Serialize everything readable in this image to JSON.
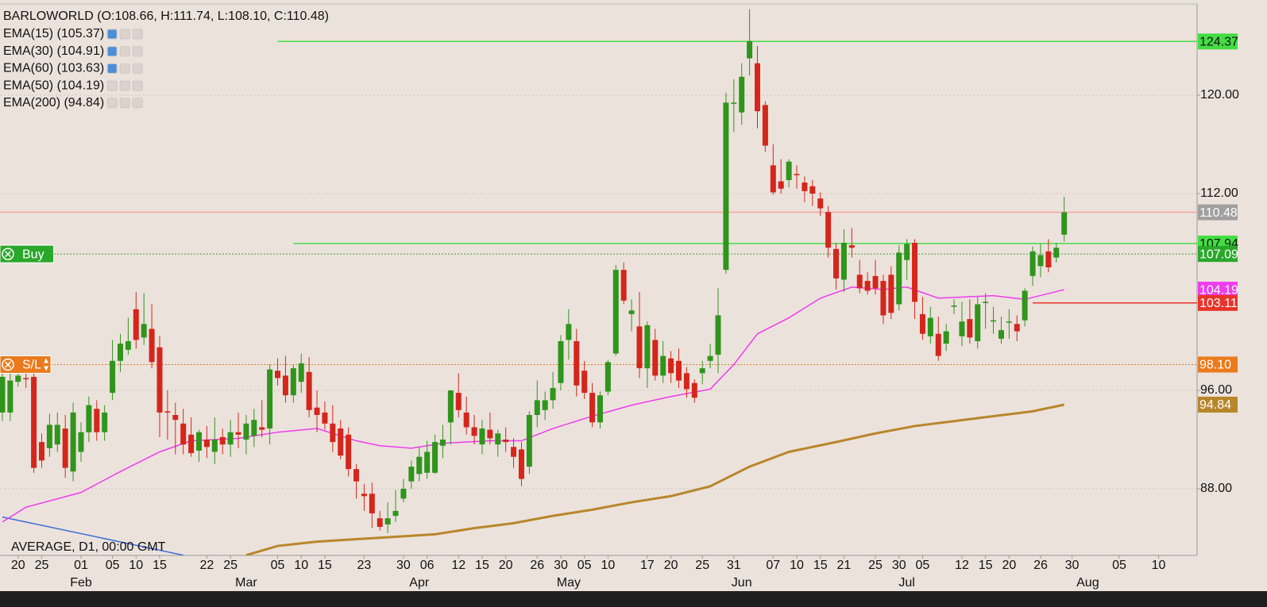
{
  "chart_data": {
    "type": "candlestick",
    "title": "BARLOWORLD (O:108.66, H:111.74, L:108.10, C:110.48)",
    "indicators": [
      "EMA(15) (105.37)",
      "EMA(30) (104.91)",
      "EMA(60) (103.63)",
      "EMA(50) (104.19)",
      "EMA(200) (94.84)"
    ],
    "footer": "AVERAGE, D1, 00:00 GMT",
    "up_color": "#2f951c",
    "down_color": "#d4261c",
    "ylim": [
      82.58,
      127.42
    ],
    "yticks": [
      {
        "value": 88,
        "label": "88.00"
      },
      {
        "value": 96,
        "label": "96.00"
      },
      {
        "value": 112,
        "label": "112.00"
      },
      {
        "value": 120,
        "label": "120.00"
      }
    ],
    "grid": true,
    "xlim": [
      -0.3,
      151.9
    ],
    "xticks": [
      {
        "value": 2,
        "label": "20"
      },
      {
        "value": 5,
        "label": "25"
      },
      {
        "value": 10,
        "label": "01"
      },
      {
        "value": 14,
        "label": "05"
      },
      {
        "value": 17,
        "label": "10"
      },
      {
        "value": 20,
        "label": "15"
      },
      {
        "value": 26,
        "label": "22"
      },
      {
        "value": 29,
        "label": "25"
      },
      {
        "value": 35,
        "label": "05"
      },
      {
        "value": 38,
        "label": "10"
      },
      {
        "value": 41,
        "label": "15"
      },
      {
        "value": 46,
        "label": "23"
      },
      {
        "value": 51,
        "label": "30"
      },
      {
        "value": 54,
        "label": "06"
      },
      {
        "value": 58,
        "label": "12"
      },
      {
        "value": 61,
        "label": "15"
      },
      {
        "value": 64,
        "label": "20"
      },
      {
        "value": 68,
        "label": "26"
      },
      {
        "value": 71,
        "label": "30"
      },
      {
        "value": 74,
        "label": "05"
      },
      {
        "value": 77,
        "label": "10"
      },
      {
        "value": 82,
        "label": "17"
      },
      {
        "value": 85,
        "label": "20"
      },
      {
        "value": 89,
        "label": "25"
      },
      {
        "value": 93,
        "label": "31"
      },
      {
        "value": 98,
        "label": "07"
      },
      {
        "value": 101,
        "label": "10"
      },
      {
        "value": 104,
        "label": "15"
      },
      {
        "value": 107,
        "label": "21"
      },
      {
        "value": 111,
        "label": "25"
      },
      {
        "value": 114,
        "label": "30"
      },
      {
        "value": 117,
        "label": "05"
      },
      {
        "value": 122,
        "label": "12"
      },
      {
        "value": 125,
        "label": "15"
      },
      {
        "value": 128,
        "label": "20"
      },
      {
        "value": 132,
        "label": "26"
      },
      {
        "value": 136,
        "label": "30"
      },
      {
        "value": 142,
        "label": "05"
      },
      {
        "value": 147,
        "label": "10"
      }
    ],
    "month_ticks": [
      {
        "value": 10,
        "label": "Feb"
      },
      {
        "value": 31,
        "label": "Mar"
      },
      {
        "value": 53,
        "label": "Apr"
      },
      {
        "value": 72,
        "label": "May"
      },
      {
        "value": 94,
        "label": "Jun"
      },
      {
        "value": 115,
        "label": "Jul"
      },
      {
        "value": 138,
        "label": "Aug"
      }
    ],
    "candles": [
      [
        94.2,
        97.7,
        93.5,
        97.1
      ],
      [
        94.2,
        97.5,
        93.5,
        96.8
      ],
      [
        96.7,
        97.6,
        96.3,
        97.2
      ],
      [
        97.0,
        97.9,
        96.2,
        96.9
      ],
      [
        97.1,
        97.8,
        89.3,
        89.7
      ],
      [
        91.8,
        92.5,
        89.7,
        90.3
      ],
      [
        91.3,
        94.1,
        90.6,
        93.2
      ],
      [
        91.6,
        94.2,
        91.0,
        93.2
      ],
      [
        92.9,
        94.0,
        88.9,
        89.7
      ],
      [
        89.4,
        95.0,
        88.6,
        94.2
      ],
      [
        91.0,
        93.4,
        90.2,
        92.6
      ],
      [
        92.6,
        95.5,
        91.8,
        94.8
      ],
      [
        94.5,
        95.2,
        91.9,
        92.6
      ],
      [
        92.6,
        94.8,
        91.9,
        94.2
      ],
      [
        95.8,
        100.1,
        95.2,
        98.4
      ],
      [
        98.4,
        100.6,
        97.5,
        99.8
      ],
      [
        99.3,
        101.9,
        98.9,
        100.0
      ],
      [
        102.6,
        104.0,
        99.4,
        100.1
      ],
      [
        100.3,
        103.9,
        99.7,
        101.4
      ],
      [
        101.0,
        103.0,
        97.8,
        98.3
      ],
      [
        99.5,
        100.4,
        92.2,
        94.2
      ],
      [
        94.3,
        96.0,
        92.0,
        94.2
      ],
      [
        94.0,
        95.0,
        90.8,
        93.6
      ],
      [
        93.3,
        94.5,
        90.8,
        91.6
      ],
      [
        92.4,
        93.8,
        90.6,
        90.9
      ],
      [
        91.1,
        92.8,
        90.2,
        92.6
      ],
      [
        92.0,
        93.1,
        90.5,
        91.4
      ],
      [
        91.0,
        93.8,
        90.0,
        92.0
      ],
      [
        92.2,
        92.9,
        90.8,
        91.6
      ],
      [
        91.6,
        93.6,
        90.6,
        92.6
      ],
      [
        92.6,
        94.2,
        91.3,
        92.4
      ],
      [
        92.0,
        94.0,
        90.8,
        93.3
      ],
      [
        92.3,
        94.5,
        91.4,
        93.6
      ],
      [
        93.0,
        95.2,
        92.2,
        92.8
      ],
      [
        92.9,
        98.1,
        91.6,
        97.7
      ],
      [
        97.6,
        98.6,
        96.4,
        97.0
      ],
      [
        97.2,
        98.8,
        95.0,
        95.6
      ],
      [
        95.6,
        98.1,
        95.0,
        97.8
      ],
      [
        96.7,
        99.0,
        95.8,
        98.2
      ],
      [
        97.5,
        98.7,
        93.8,
        94.4
      ],
      [
        94.6,
        96.0,
        92.6,
        94.0
      ],
      [
        94.2,
        95.1,
        92.8,
        93.3
      ],
      [
        93.3,
        94.8,
        91.0,
        91.8
      ],
      [
        92.9,
        93.6,
        90.4,
        90.7
      ],
      [
        92.4,
        93.0,
        89.0,
        89.6
      ],
      [
        89.6,
        90.0,
        87.2,
        88.6
      ],
      [
        87.6,
        88.4,
        86.2,
        87.4
      ],
      [
        87.6,
        88.5,
        84.8,
        86.0
      ],
      [
        85.6,
        86.2,
        84.6,
        84.9
      ],
      [
        85.1,
        86.9,
        84.4,
        85.6
      ],
      [
        85.8,
        87.9,
        85.3,
        86.2
      ],
      [
        87.2,
        88.8,
        86.9,
        88.0
      ],
      [
        88.6,
        90.3,
        88.0,
        89.8
      ],
      [
        89.2,
        91.4,
        88.6,
        90.6
      ],
      [
        89.3,
        91.9,
        88.8,
        91.0
      ],
      [
        89.3,
        92.4,
        89.2,
        91.8
      ],
      [
        91.5,
        93.2,
        90.5,
        92.0
      ],
      [
        93.4,
        96.0,
        91.6,
        96.0
      ],
      [
        95.8,
        97.4,
        93.8,
        94.4
      ],
      [
        94.2,
        95.5,
        92.4,
        93.0
      ],
      [
        93.0,
        94.0,
        91.6,
        92.3
      ],
      [
        91.6,
        93.6,
        90.8,
        92.9
      ],
      [
        92.8,
        94.2,
        91.6,
        92.1
      ],
      [
        91.6,
        92.8,
        90.6,
        92.5
      ],
      [
        92.0,
        93.0,
        91.0,
        91.8
      ],
      [
        91.4,
        92.1,
        89.7,
        90.6
      ],
      [
        91.2,
        91.8,
        88.2,
        88.8
      ],
      [
        89.8,
        94.3,
        89.2,
        94.0
      ],
      [
        94.0,
        96.8,
        93.0,
        95.2
      ],
      [
        94.4,
        95.9,
        93.6,
        95.2
      ],
      [
        95.2,
        97.5,
        94.5,
        96.2
      ],
      [
        96.6,
        100.5,
        96.0,
        100.0
      ],
      [
        100.1,
        102.6,
        98.5,
        101.4
      ],
      [
        100.0,
        101.0,
        95.5,
        96.4
      ],
      [
        97.6,
        98.4,
        95.3,
        95.8
      ],
      [
        95.8,
        96.6,
        93.0,
        93.4
      ],
      [
        93.4,
        95.9,
        92.9,
        95.6
      ],
      [
        95.9,
        98.5,
        95.6,
        98.3
      ],
      [
        99.0,
        106.2,
        98.8,
        105.8
      ],
      [
        105.8,
        106.4,
        103.0,
        103.3
      ],
      [
        102.2,
        103.4,
        100.8,
        102.5
      ],
      [
        101.2,
        104.0,
        97.0,
        97.8
      ],
      [
        97.8,
        101.6,
        96.2,
        101.3
      ],
      [
        100.1,
        101.0,
        96.8,
        97.2
      ],
      [
        97.2,
        100.0,
        96.6,
        98.8
      ],
      [
        98.6,
        99.2,
        96.6,
        97.4
      ],
      [
        98.4,
        99.4,
        96.2,
        96.8
      ],
      [
        97.4,
        97.9,
        95.4,
        96.1
      ],
      [
        96.6,
        96.9,
        95.0,
        95.4
      ],
      [
        97.4,
        98.4,
        96.5,
        97.8
      ],
      [
        98.4,
        99.8,
        97.8,
        98.8
      ],
      [
        98.9,
        104.3,
        97.4,
        102.1
      ],
      [
        105.8,
        120.2,
        105.5,
        119.4
      ],
      [
        119.3,
        121.3,
        117.0,
        119.4
      ],
      [
        118.6,
        122.6,
        117.6,
        121.5
      ],
      [
        123.0,
        127.0,
        121.6,
        124.4
      ],
      [
        122.6,
        124.0,
        117.3,
        118.7
      ],
      [
        119.2,
        119.5,
        115.4,
        115.9
      ],
      [
        114.3,
        116.0,
        111.9,
        112.1
      ],
      [
        113.0,
        114.8,
        112.0,
        112.4
      ],
      [
        113.1,
        114.8,
        112.5,
        114.6
      ],
      [
        113.6,
        114.3,
        112.4,
        113.5
      ],
      [
        112.9,
        113.4,
        111.3,
        112.2
      ],
      [
        112.6,
        113.1,
        111.0,
        112.0
      ],
      [
        111.6,
        112.1,
        110.2,
        110.8
      ],
      [
        110.5,
        111.0,
        106.8,
        107.6
      ],
      [
        107.5,
        108.0,
        104.2,
        105.1
      ],
      [
        105.0,
        109.1,
        104.0,
        108.0
      ],
      [
        107.8,
        109.2,
        106.8,
        107.6
      ],
      [
        105.4,
        106.6,
        103.9,
        104.3
      ],
      [
        104.9,
        105.6,
        103.8,
        104.1
      ],
      [
        105.3,
        106.6,
        103.8,
        104.3
      ],
      [
        104.9,
        105.4,
        101.4,
        102.1
      ],
      [
        105.4,
        106.1,
        101.8,
        102.3
      ],
      [
        103.0,
        107.8,
        102.5,
        107.2
      ],
      [
        106.6,
        108.3,
        105.0,
        107.9
      ],
      [
        108.0,
        108.3,
        101.8,
        103.2
      ],
      [
        102.2,
        103.6,
        100.1,
        100.6
      ],
      [
        100.4,
        102.8,
        99.8,
        101.9
      ],
      [
        100.6,
        102.0,
        98.4,
        98.8
      ],
      [
        99.8,
        101.4,
        99.2,
        100.8
      ],
      [
        102.8,
        103.4,
        102.2,
        102.9
      ],
      [
        100.4,
        103.2,
        99.6,
        101.6
      ],
      [
        101.8,
        103.4,
        99.8,
        100.3
      ],
      [
        100.0,
        103.6,
        99.4,
        103.0
      ],
      [
        103.1,
        103.9,
        101.0,
        103.2
      ],
      [
        101.6,
        102.8,
        100.6,
        101.7
      ],
      [
        100.2,
        102.0,
        99.8,
        100.9
      ],
      [
        101.5,
        102.6,
        100.2,
        101.6
      ],
      [
        101.4,
        102.1,
        100.0,
        100.8
      ],
      [
        101.7,
        104.3,
        101.2,
        104.1
      ],
      [
        105.3,
        107.7,
        104.5,
        107.3
      ],
      [
        106.1,
        107.9,
        105.2,
        107.0
      ],
      [
        107.3,
        108.3,
        105.6,
        106.0
      ],
      [
        106.8,
        108.0,
        106.4,
        107.6
      ],
      [
        108.66,
        111.74,
        108.1,
        110.48
      ]
    ],
    "series": [
      {
        "color": "#3a6fd8",
        "x": [
          0,
          23
        ],
        "values": [
          85.7,
          82.6
        ]
      },
      {
        "color": "#ee3cee",
        "x": [
          0,
          3,
          10,
          15,
          20,
          24,
          30,
          35,
          40,
          45,
          48,
          52,
          56,
          62,
          66,
          70,
          75,
          80,
          85,
          90,
          93,
          96,
          100,
          104,
          108,
          112,
          115,
          119,
          126,
          130,
          135
        ],
        "values": [
          85.3,
          86.5,
          87.7,
          89.4,
          91.0,
          91.9,
          92.1,
          92.6,
          92.9,
          91.9,
          91.5,
          91.3,
          91.7,
          91.9,
          91.9,
          92.9,
          93.9,
          94.8,
          95.5,
          96.1,
          98.1,
          100.6,
          101.9,
          103.5,
          104.4,
          104.2,
          104.4,
          103.5,
          103.7,
          103.4,
          104.19
        ]
      },
      {
        "color": "#b8862a",
        "x": [
          31,
          35,
          40,
          45,
          50,
          55,
          60,
          65,
          70,
          75,
          80,
          85,
          90,
          95,
          100,
          106,
          111,
          116,
          121,
          126,
          131,
          135
        ],
        "values": [
          82.6,
          83.35,
          83.7,
          83.9,
          84.1,
          84.3,
          84.8,
          85.2,
          85.8,
          86.3,
          86.9,
          87.4,
          88.2,
          89.8,
          91.0,
          91.8,
          92.5,
          93.1,
          93.5,
          93.9,
          94.3,
          94.84
        ]
      }
    ],
    "levels": [
      {
        "value": 124.37,
        "label": "124.37",
        "color": "#44dd44",
        "text_color": "#111",
        "line": "solid",
        "from": 35
      },
      {
        "value": 110.48,
        "label": "110.48",
        "color": "#a0a0a0",
        "text_color": "#fff",
        "line": "solid",
        "line_color": "#f2a4a0",
        "from": -0.3
      },
      {
        "value": 107.94,
        "label": "107.94",
        "color": "#44dd44",
        "text_color": "#111",
        "line": "solid",
        "from": 37
      },
      {
        "value": 107.09,
        "label": "107.09",
        "color": "#2aa82a",
        "text_color": "#fff",
        "line": "dotted",
        "from": -0.3,
        "button": "Buy"
      },
      {
        "value": 104.19,
        "label": "104.19",
        "color": "#ee3cee",
        "text_color": "#fff",
        "line": "none"
      },
      {
        "value": 103.11,
        "label": "103.11",
        "color": "#e8342a",
        "text_color": "#fff",
        "line": "solid",
        "from": 131
      },
      {
        "value": 98.1,
        "label": "98.10",
        "color": "#ea7a1c",
        "text_color": "#fff",
        "line": "dotted",
        "from": -0.3,
        "button": "S/L"
      },
      {
        "value": 94.84,
        "label": "94.84",
        "color": "#b8862a",
        "text_color": "#fff",
        "line": "none"
      }
    ]
  }
}
